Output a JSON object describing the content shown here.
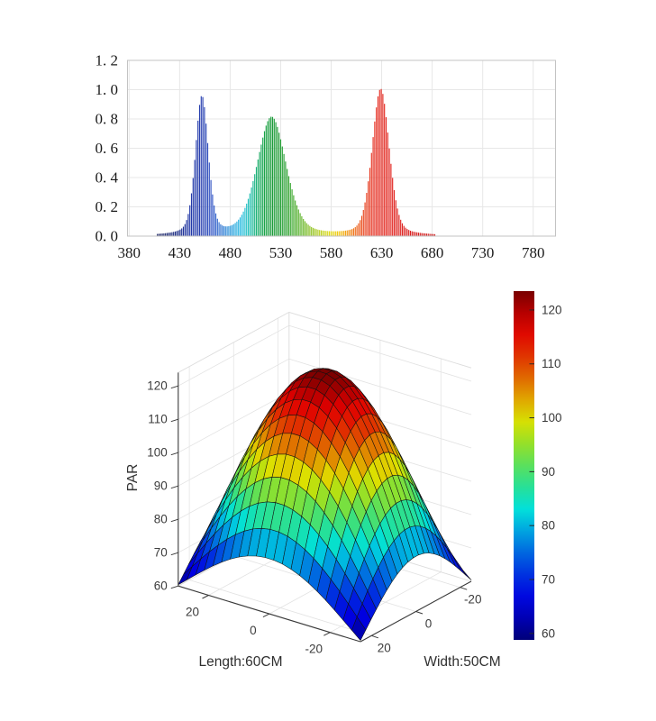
{
  "figure": {
    "background": "#ffffff"
  },
  "chart_data": [
    {
      "type": "area",
      "name": "led-emission-spectrum",
      "description": "Relative spectral intensity of RGB LED light, rendered as thin wavelength-colored bars",
      "xlim": [
        380,
        800
      ],
      "ylim": [
        0,
        1.2
      ],
      "grid": true,
      "x_tick_values": [
        380,
        430,
        480,
        530,
        580,
        630,
        680,
        730,
        780
      ],
      "x_tick_labels": [
        "380",
        "430",
        "480",
        "530",
        "580",
        "630",
        "680",
        "730",
        "780"
      ],
      "y_tick_values": [
        0,
        0.2,
        0.4,
        0.6,
        0.8,
        1.0,
        1.2
      ],
      "y_tick_labels": [
        "0. 0",
        "0. 2",
        "0. 4",
        "0. 6",
        "0. 8",
        "1. 0",
        "1. 2"
      ],
      "peaks": [
        {
          "center": 452,
          "height": 0.945,
          "width": 7.5,
          "eta": 0.32
        },
        {
          "center": 521,
          "height": 0.81,
          "width": 17,
          "eta": 0.33
        },
        {
          "center": 629,
          "height": 1.0,
          "width": 10,
          "eta": 0.3
        }
      ],
      "key_points": {
        "peak_values": [
          {
            "nm": 452,
            "value": 0.94
          },
          {
            "nm": 521,
            "value": 0.81
          },
          {
            "nm": 629,
            "value": 1.0
          }
        ],
        "valley_values": [
          {
            "nm": 490,
            "value": 0.1
          },
          {
            "nm": 585,
            "value": 0.03
          }
        ],
        "visible_range_nm": [
          410,
          680
        ]
      },
      "spectral_palette": [
        [
          410,
          "#131c5e"
        ],
        [
          425,
          "#1a2a80"
        ],
        [
          440,
          "#2238a8"
        ],
        [
          452,
          "#2a41b0"
        ],
        [
          462,
          "#2f52c4"
        ],
        [
          472,
          "#2f76d2"
        ],
        [
          482,
          "#2aa0dd"
        ],
        [
          492,
          "#25bfdf"
        ],
        [
          500,
          "#1fbfae"
        ],
        [
          507,
          "#1bae6e"
        ],
        [
          514,
          "#1aa348"
        ],
        [
          522,
          "#1d9c3a"
        ],
        [
          535,
          "#27a032"
        ],
        [
          548,
          "#55b02a"
        ],
        [
          560,
          "#8bc021"
        ],
        [
          572,
          "#c6d31c"
        ],
        [
          580,
          "#e4da1a"
        ],
        [
          588,
          "#f2c614"
        ],
        [
          596,
          "#f29a16"
        ],
        [
          604,
          "#ee6a1a"
        ],
        [
          612,
          "#e9461e"
        ],
        [
          622,
          "#e52e20"
        ],
        [
          640,
          "#e22722"
        ],
        [
          660,
          "#d92222"
        ],
        [
          680,
          "#d01f1f"
        ]
      ]
    },
    {
      "type": "surface",
      "name": "par-distribution-surface",
      "description": "3D dome-shaped PAR distribution over the illuminated area, jet colormap with black mesh",
      "zlabel": "PAR",
      "xlabel": "Length:60CM",
      "ylabel": "Width:50CM",
      "z_tick_labels": [
        "60",
        "70",
        "80",
        "90",
        "100",
        "110",
        "120"
      ],
      "z_tick_values": [
        60,
        70,
        80,
        90,
        100,
        110,
        120
      ],
      "length_tick_labels": [
        "20",
        "0",
        "-20"
      ],
      "length_tick_values": [
        20,
        0,
        -20
      ],
      "width_tick_labels": [
        "20",
        "0",
        "-20"
      ],
      "width_tick_values": [
        20,
        0,
        -20
      ],
      "length_range": [
        -30,
        30
      ],
      "width_range": [
        -25,
        25
      ],
      "z_axis_range": [
        60,
        124
      ],
      "caxis": [
        59,
        123.5
      ],
      "surface_model": {
        "base": 60,
        "amplitude": 64,
        "corner_dip": 4.5,
        "length_cos_period": 72,
        "width_cos_period": 60,
        "mesh_divisions": 21,
        "peak_value": 124,
        "corner_value": 60.4,
        "edge_mid_value": 76.6
      },
      "z_sample_grid": {
        "length_points": [
          -30,
          -20,
          -10,
          0,
          10,
          20,
          30
        ],
        "width_points": [
          -25,
          -12.5,
          0,
          12.5,
          25
        ],
        "values": [
          [
            60.4,
            71.6,
            76.6,
            71.6,
            60.4
          ],
          [
            68.2,
            91.7,
            101.2,
            91.7,
            68.2
          ],
          [
            74.3,
            105.7,
            118.0,
            105.7,
            74.3
          ],
          [
            76.6,
            110.8,
            124.0,
            110.8,
            76.6
          ],
          [
            74.3,
            105.7,
            118.0,
            105.7,
            74.3
          ],
          [
            68.2,
            91.7,
            101.2,
            91.7,
            68.2
          ],
          [
            60.4,
            71.6,
            76.6,
            71.6,
            60.4
          ]
        ]
      },
      "colorbar": {
        "tick_labels": [
          "60",
          "70",
          "80",
          "90",
          "100",
          "110",
          "120"
        ],
        "tick_values": [
          60,
          70,
          80,
          90,
          100,
          110,
          120
        ],
        "range": [
          58.8,
          123.5
        ],
        "colormap": "jet"
      }
    }
  ]
}
